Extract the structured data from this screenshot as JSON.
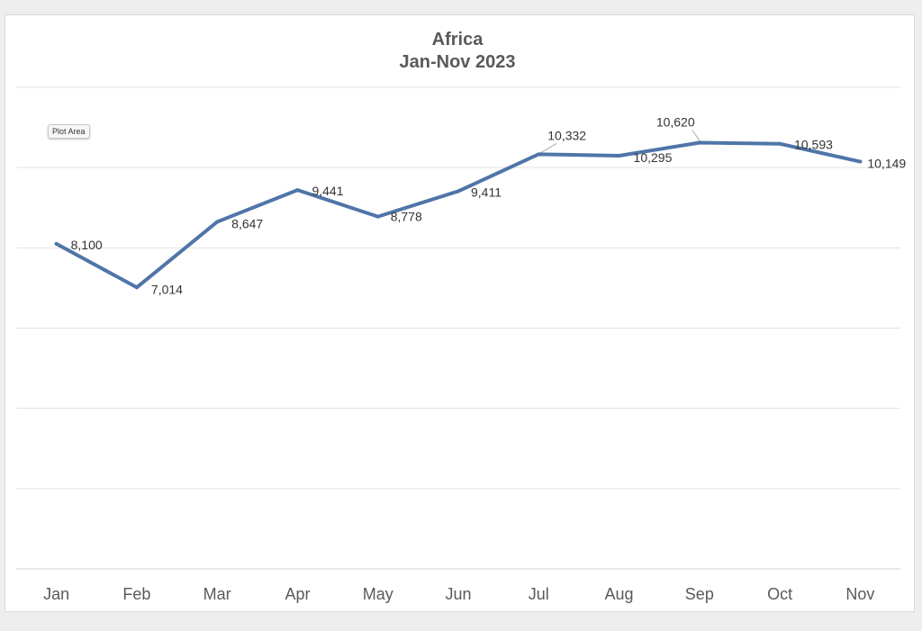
{
  "chart_data": {
    "type": "line",
    "title": "Africa",
    "subtitle": "Jan-Nov 2023",
    "categories": [
      "Jan",
      "Feb",
      "Mar",
      "Apr",
      "May",
      "Jun",
      "Jul",
      "Aug",
      "Sep",
      "Oct",
      "Nov"
    ],
    "series": [
      {
        "name": "Africa",
        "color": "#4f75a8",
        "values": [
          8100,
          7014,
          8647,
          9441,
          8778,
          9411,
          10332,
          10295,
          10620,
          10593,
          10149
        ],
        "labels": [
          "8,100",
          "7,014",
          "8,647",
          "9,441",
          "8,778",
          "9,411",
          "10,332",
          "10,295",
          "10,620",
          "10,593",
          "10,149"
        ]
      }
    ],
    "ylim": [
      0,
      12000
    ],
    "grid": true,
    "legend": "none",
    "xlabel": "",
    "ylabel": ""
  },
  "tooltip": {
    "text": "Plot Area"
  }
}
